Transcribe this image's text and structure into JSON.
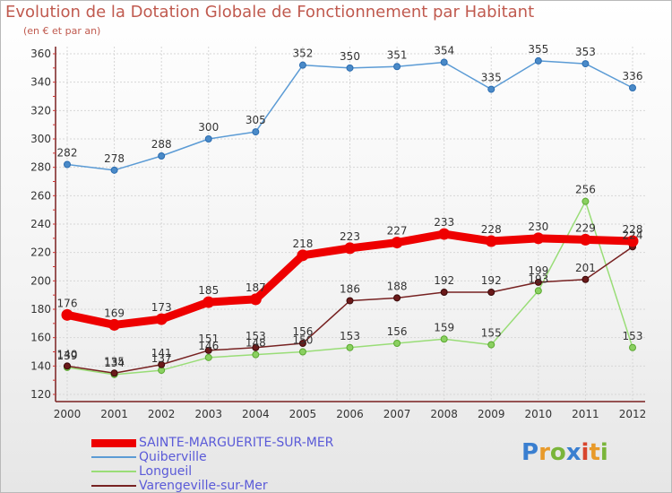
{
  "title": "Evolution de la Dotation Globale de Fonctionnement par Habitant",
  "subtitle": "(en € et par an)",
  "logo": {
    "text": "Proxiti",
    "colors": [
      "#3a7fd0",
      "#e89a2a",
      "#7ab53a",
      "#3a7fd0",
      "#d8452d",
      "#e89a2a",
      "#7ab53a"
    ]
  },
  "chart_data": {
    "type": "line",
    "title": "Evolution de la Dotation Globale de Fonctionnement par Habitant",
    "subtitle": "(en € et par an)",
    "xlabel": "",
    "ylabel": "",
    "x": [
      2000,
      2001,
      2002,
      2003,
      2004,
      2005,
      2006,
      2007,
      2008,
      2009,
      2010,
      2011,
      2012
    ],
    "ylim": [
      120,
      360
    ],
    "yticks": [
      120,
      140,
      160,
      180,
      200,
      220,
      240,
      260,
      280,
      300,
      320,
      340,
      360
    ],
    "grid": true,
    "legend": "bottom-left",
    "series": [
      {
        "name": "SAINTE-MARGUERITE-SUR-MER",
        "color": "#ee0000",
        "values": [
          176,
          169,
          173,
          185,
          187,
          218,
          223,
          227,
          233,
          228,
          230,
          229,
          228
        ]
      },
      {
        "name": "Quiberville",
        "color": "#5b9bd5",
        "values": [
          282,
          278,
          288,
          300,
          305,
          352,
          350,
          351,
          354,
          335,
          355,
          353,
          336
        ]
      },
      {
        "name": "Longueil",
        "color": "#99dd77",
        "values": [
          139,
          134,
          137,
          146,
          148,
          150,
          153,
          156,
          159,
          155,
          193,
          256,
          153
        ]
      },
      {
        "name": "Varengeville-sur-Mer",
        "color": "#772222",
        "values": [
          140,
          135,
          141,
          151,
          153,
          156,
          186,
          188,
          192,
          192,
          199,
          201,
          224
        ]
      }
    ]
  }
}
